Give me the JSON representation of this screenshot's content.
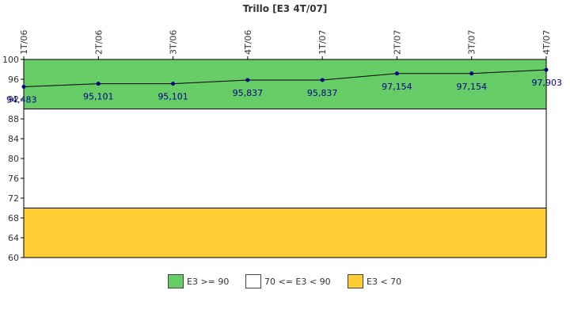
{
  "chart_data": {
    "type": "line",
    "title": "Trillo [E3 4T/07]",
    "categories": [
      "1T/06",
      "2T/06",
      "3T/06",
      "4T/06",
      "1T/07",
      "2T/07",
      "3T/07",
      "4T/07"
    ],
    "series": [
      {
        "values": [
          94.483,
          95.101,
          95.101,
          95.837,
          95.837,
          97.154,
          97.154,
          97.903
        ],
        "labels": [
          "94,483",
          "95,101",
          "95,101",
          "95,837",
          "95,837",
          "97,154",
          "97,154",
          "97,903"
        ],
        "color": "#00008b"
      }
    ],
    "ylim": [
      60,
      100
    ],
    "yticks": [
      60,
      64,
      68,
      72,
      76,
      80,
      84,
      88,
      92,
      96,
      100
    ],
    "bands": [
      {
        "from": 90,
        "to": 100,
        "color": "#66cc66",
        "label": "E3 >= 90"
      },
      {
        "from": 70,
        "to": 90,
        "color": "#ffffff",
        "label": "70 <= E3 < 90"
      },
      {
        "from": 60,
        "to": 70,
        "color": "#ffcc33",
        "label": "E3 < 70"
      }
    ],
    "legend_position": "bottom",
    "grid": false
  }
}
